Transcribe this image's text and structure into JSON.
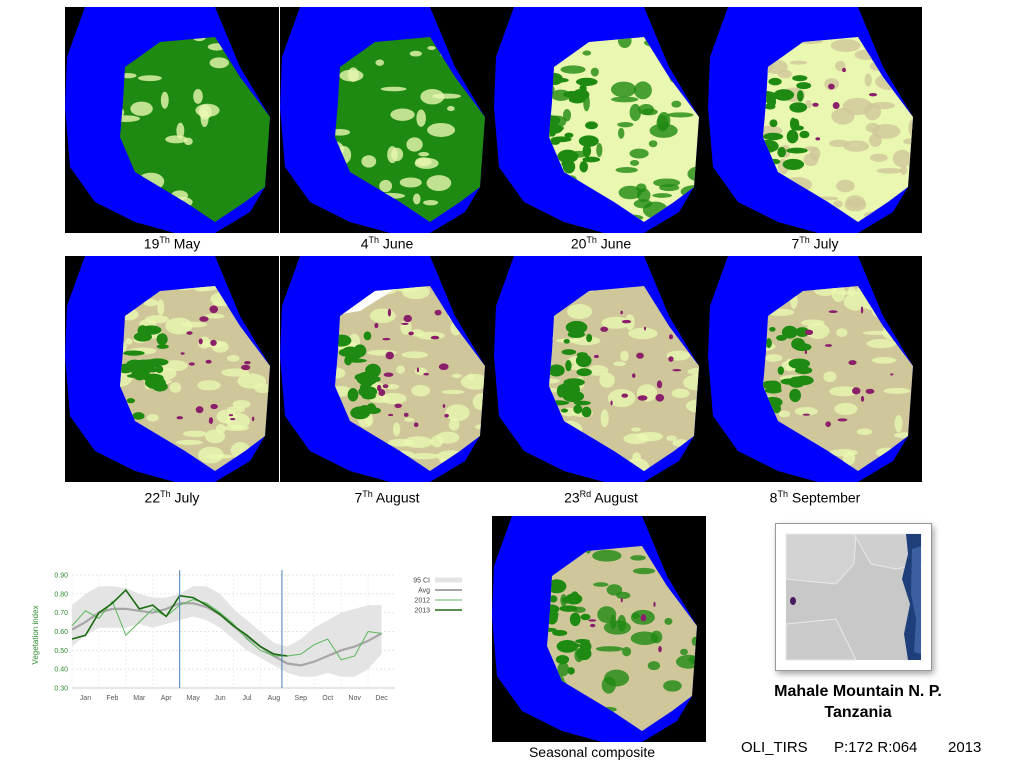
{
  "panels": [
    {
      "day": "19",
      "suffix": "Th",
      "month": "May",
      "scene": "green"
    },
    {
      "day": "4",
      "suffix": "Th",
      "month": "June",
      "scene": "green2"
    },
    {
      "day": "20",
      "suffix": "Th",
      "month": "June",
      "scene": "mixed"
    },
    {
      "day": "7",
      "suffix": "Th",
      "month": "July",
      "scene": "dry"
    },
    {
      "day": "22",
      "suffix": "Th",
      "month": "July",
      "scene": "dry2"
    },
    {
      "day": "7",
      "suffix": "Th",
      "month": "August",
      "scene": "cloud"
    },
    {
      "day": "23",
      "suffix": "Rd",
      "month": "August",
      "scene": "dry3"
    },
    {
      "day": "8",
      "suffix": "Th",
      "month": "September",
      "scene": "dry4"
    }
  ],
  "composite": {
    "label": "Seasonal composite"
  },
  "site": {
    "title_line1": "Mahale Mountain N. P.",
    "title_line2": "Tanzania",
    "sensor": "OLI_TIRS",
    "path_row": "P:172 R:064",
    "year": "2013"
  },
  "colors": {
    "water": "#0000ff",
    "forest": "#1f8a12",
    "light": "#e9f7b0",
    "bare": "#cfc79a",
    "burn": "#8a1f6a",
    "background": "#000000",
    "chart_green": "#2e8b2e",
    "ci_band": "#e4e4e4",
    "avg_line": "#a6a6a6",
    "marker_line": "#4a7fb5"
  },
  "chart_data": {
    "type": "line",
    "title": "",
    "xlabel": "",
    "ylabel": "Vegetation index",
    "ylim": [
      0.3,
      0.9
    ],
    "yticks": [
      "0.90",
      "0.80",
      "0.70",
      "0.60",
      "0.50",
      "0.40",
      "0.30"
    ],
    "categories": [
      "Jan",
      "Feb",
      "Mar",
      "Apr",
      "May",
      "Jun",
      "Jul",
      "Aug",
      "Sep",
      "Oct",
      "Nov",
      "Dec"
    ],
    "x": [
      0.0,
      0.5,
      1.0,
      1.5,
      2.0,
      2.5,
      3.0,
      3.5,
      4.0,
      4.5,
      5.0,
      5.5,
      6.0,
      6.5,
      7.0,
      7.5,
      8.0,
      8.5,
      9.0,
      9.5,
      10.0,
      10.5,
      11.0,
      11.5
    ],
    "markers": [
      4.0,
      7.8
    ],
    "legend_position": "right",
    "series": [
      {
        "name": "95 CI",
        "lower": [
          0.52,
          0.58,
          0.62,
          0.62,
          0.62,
          0.64,
          0.62,
          0.64,
          0.66,
          0.68,
          0.66,
          0.62,
          0.56,
          0.5,
          0.46,
          0.42,
          0.38,
          0.36,
          0.36,
          0.38,
          0.36,
          0.36,
          0.4,
          0.48
        ],
        "upper": [
          0.74,
          0.8,
          0.84,
          0.84,
          0.83,
          0.8,
          0.78,
          0.78,
          0.8,
          0.84,
          0.84,
          0.8,
          0.72,
          0.66,
          0.6,
          0.54,
          0.52,
          0.56,
          0.62,
          0.66,
          0.7,
          0.72,
          0.74,
          0.74
        ]
      },
      {
        "name": "Avg",
        "values": [
          0.61,
          0.65,
          0.7,
          0.72,
          0.72,
          0.71,
          0.7,
          0.72,
          0.75,
          0.75,
          0.73,
          0.69,
          0.63,
          0.57,
          0.52,
          0.47,
          0.43,
          0.42,
          0.44,
          0.47,
          0.5,
          0.52,
          0.55,
          0.59
        ]
      },
      {
        "name": "2012",
        "values": [
          0.63,
          0.71,
          0.67,
          0.76,
          0.58,
          0.65,
          0.72,
          0.68,
          0.74,
          0.77,
          0.75,
          0.7,
          0.64,
          0.56,
          0.5,
          0.47,
          0.47,
          0.48,
          0.53,
          0.56,
          0.45,
          0.47,
          0.6,
          0.59
        ]
      },
      {
        "name": "2013",
        "values": [
          0.56,
          0.58,
          0.7,
          0.75,
          0.82,
          0.72,
          0.74,
          0.68,
          0.79,
          0.78,
          0.74,
          0.69,
          0.63,
          0.58,
          0.52,
          0.48,
          0.47,
          null,
          null,
          null,
          null,
          null,
          null,
          null
        ]
      }
    ]
  }
}
